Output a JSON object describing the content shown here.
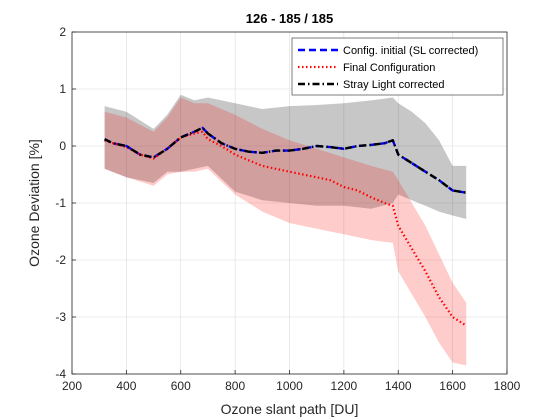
{
  "chart_data": {
    "type": "line",
    "title": "126 - 185 / 185",
    "xlabel": "Ozone slant path [DU]",
    "ylabel": "Ozone Deviation [%]",
    "xlim": [
      200,
      1800
    ],
    "ylim": [
      -4,
      2
    ],
    "xticks": [
      200,
      400,
      600,
      800,
      1000,
      1200,
      1400,
      1600,
      1800
    ],
    "yticks": [
      -4,
      -3,
      -2,
      -1,
      0,
      1,
      2
    ],
    "grid": true,
    "legend_position": "top-right",
    "series": [
      {
        "name": "Config. initial (SL corrected)",
        "color": "#0000ff",
        "style": "dashed",
        "x": [
          320,
          350,
          400,
          450,
          500,
          550,
          600,
          650,
          680,
          700,
          750,
          800,
          850,
          900,
          950,
          1000,
          1050,
          1100,
          1150,
          1200,
          1250,
          1300,
          1350,
          1380,
          1400,
          1450,
          1500,
          1550,
          1600,
          1650
        ],
        "y": [
          0.12,
          0.05,
          0.0,
          -0.15,
          -0.2,
          -0.05,
          0.15,
          0.25,
          0.32,
          0.22,
          0.05,
          -0.05,
          -0.1,
          -0.12,
          -0.08,
          -0.08,
          -0.05,
          0.0,
          -0.02,
          -0.05,
          0.0,
          0.02,
          0.05,
          0.1,
          -0.15,
          -0.3,
          -0.45,
          -0.6,
          -0.78,
          -0.82
        ]
      },
      {
        "name": "Final Configuration",
        "color": "#ff0000",
        "style": "dotted",
        "x": [
          320,
          350,
          400,
          450,
          500,
          550,
          600,
          650,
          680,
          700,
          750,
          800,
          850,
          900,
          950,
          1000,
          1050,
          1100,
          1150,
          1200,
          1250,
          1300,
          1350,
          1380,
          1400,
          1450,
          1500,
          1550,
          1600,
          1650
        ],
        "y": [
          0.1,
          0.05,
          -0.02,
          -0.15,
          -0.22,
          -0.05,
          0.15,
          0.22,
          0.25,
          0.12,
          0.0,
          -0.15,
          -0.25,
          -0.35,
          -0.4,
          -0.45,
          -0.5,
          -0.55,
          -0.6,
          -0.72,
          -0.78,
          -0.9,
          -1.0,
          -1.05,
          -1.4,
          -1.8,
          -2.2,
          -2.65,
          -3.0,
          -3.15
        ]
      },
      {
        "name": "Stray Light corrected",
        "color": "#000000",
        "style": "dash-dot",
        "x": [
          320,
          350,
          400,
          450,
          500,
          550,
          600,
          650,
          680,
          700,
          750,
          800,
          850,
          900,
          950,
          1000,
          1050,
          1100,
          1150,
          1200,
          1250,
          1300,
          1350,
          1380,
          1400,
          1450,
          1500,
          1550,
          1600,
          1650
        ],
        "y": [
          0.12,
          0.05,
          0.0,
          -0.15,
          -0.2,
          -0.05,
          0.15,
          0.25,
          0.32,
          0.22,
          0.05,
          -0.05,
          -0.1,
          -0.12,
          -0.08,
          -0.08,
          -0.05,
          0.0,
          -0.02,
          -0.05,
          0.0,
          0.02,
          0.05,
          0.1,
          -0.15,
          -0.3,
          -0.45,
          -0.6,
          -0.78,
          -0.82
        ]
      }
    ],
    "bands": [
      {
        "color": "#000000",
        "opacity": 0.22,
        "x": [
          320,
          400,
          500,
          550,
          600,
          650,
          700,
          800,
          900,
          1000,
          1100,
          1200,
          1300,
          1380,
          1400,
          1450,
          1500,
          1550,
          1600,
          1650
        ],
        "upper": [
          0.7,
          0.6,
          0.3,
          0.55,
          0.9,
          0.8,
          0.85,
          0.75,
          0.65,
          0.7,
          0.72,
          0.75,
          0.8,
          0.85,
          0.75,
          0.6,
          0.4,
          0.1,
          -0.35,
          -0.35
        ],
        "lower": [
          -0.4,
          -0.55,
          -0.65,
          -0.45,
          -0.45,
          -0.4,
          -0.35,
          -0.8,
          -0.95,
          -1.0,
          -1.05,
          -1.05,
          -1.1,
          -1.0,
          -0.85,
          -0.95,
          -1.05,
          -1.15,
          -1.22,
          -1.28
        ]
      },
      {
        "color": "#ff0000",
        "opacity": 0.2,
        "x": [
          320,
          400,
          500,
          550,
          600,
          650,
          700,
          800,
          900,
          1000,
          1100,
          1200,
          1300,
          1380,
          1400,
          1450,
          1500,
          1550,
          1600,
          1650
        ],
        "upper": [
          0.6,
          0.5,
          0.25,
          0.5,
          0.85,
          0.75,
          0.75,
          0.55,
          0.3,
          0.1,
          -0.05,
          -0.2,
          -0.35,
          -0.45,
          -0.6,
          -1.0,
          -1.4,
          -1.9,
          -2.4,
          -2.75
        ],
        "lower": [
          -0.4,
          -0.55,
          -0.7,
          -0.5,
          -0.45,
          -0.45,
          -0.4,
          -0.85,
          -1.15,
          -1.35,
          -1.45,
          -1.55,
          -1.65,
          -1.7,
          -2.2,
          -2.6,
          -3.0,
          -3.45,
          -3.8,
          -3.85
        ]
      }
    ]
  }
}
